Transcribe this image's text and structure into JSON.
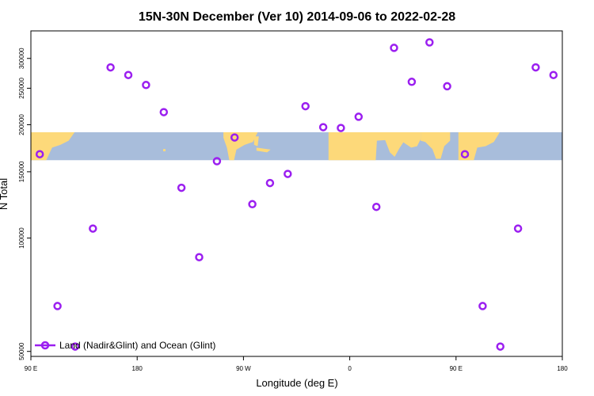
{
  "chart_data": {
    "type": "scatter",
    "title": "15N-30N December (Ver 10)   2014-09-06 to 2022-02-28",
    "xlabel": "Longitude (deg E)",
    "ylabel": "N Total",
    "x_scale": "linear",
    "y_scale": "log",
    "xlim": [
      90,
      540
    ],
    "ylim": [
      48500,
      355000
    ],
    "x_ticks": [
      {
        "value": 90,
        "label": "90 E"
      },
      {
        "value": 180,
        "label": "180"
      },
      {
        "value": 270,
        "label": "90 W"
      },
      {
        "value": 360,
        "label": "0"
      },
      {
        "value": 450,
        "label": "90 E"
      },
      {
        "value": 540,
        "label": "180"
      }
    ],
    "y_ticks": [
      {
        "value": 50000,
        "label": "50000"
      },
      {
        "value": 100000,
        "label": "100000"
      },
      {
        "value": 150000,
        "label": "150000"
      },
      {
        "value": 200000,
        "label": "200000"
      },
      {
        "value": 250000,
        "label": "250000"
      },
      {
        "value": 300000,
        "label": "300000"
      }
    ],
    "series": [
      {
        "name": "Land (Nadir&Glint) and Ocean (Glint)",
        "color": "#9b1ff0",
        "x": [
          97.5,
          112.5,
          127.5,
          142.5,
          157.5,
          172.5,
          187.5,
          202.5,
          217.5,
          232.5,
          247.5,
          262.5,
          277.5,
          292.5,
          307.5,
          322.5,
          337.5,
          352.5,
          367.5,
          382.5,
          397.5,
          412.5,
          427.5,
          442.5,
          457.5,
          472.5,
          487.5,
          502.5,
          517.5,
          532.5
        ],
        "y": [
          167000,
          66000,
          51500,
          106000,
          284000,
          271000,
          255000,
          216000,
          136000,
          89000,
          160000,
          185000,
          123000,
          140000,
          148000,
          224000,
          197000,
          196000,
          210000,
          121000,
          320000,
          260000,
          331000,
          253000,
          167000,
          66000,
          51500,
          106000,
          284000,
          271000
        ]
      }
    ],
    "legend": {
      "position": "bottom-left",
      "label": "Land (Nadir&Glint) and Ocean (Glint)"
    },
    "map_band": {
      "y_low": 161000,
      "y_high": 191000,
      "ocean_color": "#a8bddb",
      "land_color": "#fdd97a"
    }
  }
}
